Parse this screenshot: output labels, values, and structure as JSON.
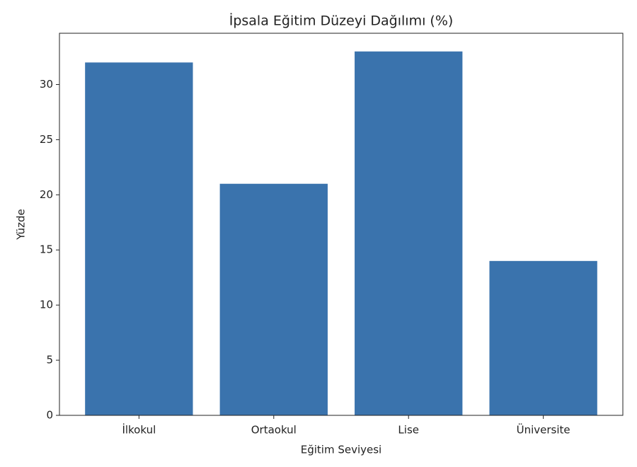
{
  "chart_data": {
    "type": "bar",
    "title": "İpsala Eğitim Düzeyi Dağılımı (%)",
    "x_label": "Eğitim Seviyesi",
    "y_label": "Yüzde",
    "categories": [
      "İlkokul",
      "Ortaokul",
      "Lise",
      "Üniversite"
    ],
    "values": [
      32,
      21,
      33,
      14
    ],
    "color": "#3a73ad",
    "ylim": [
      0,
      34.65
    ],
    "yticks": [
      0,
      5,
      10,
      15,
      20,
      25,
      30
    ],
    "grid": false
  }
}
